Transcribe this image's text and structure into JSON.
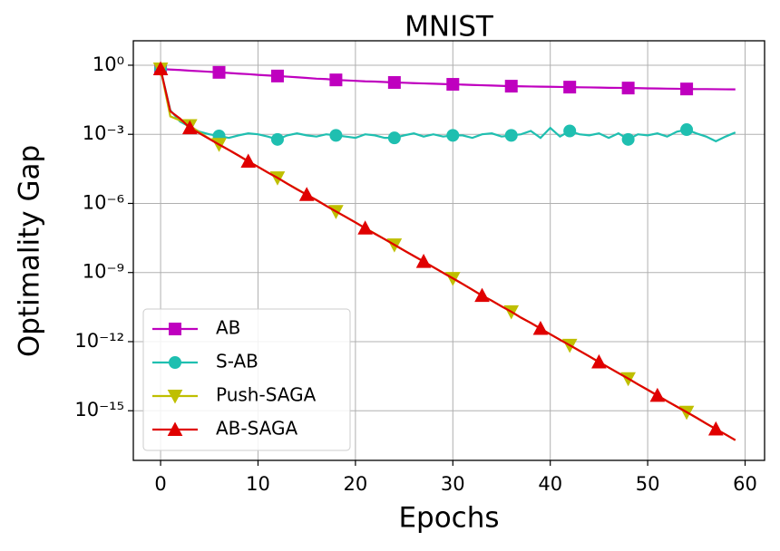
{
  "chart_data": {
    "type": "line",
    "title": "MNIST",
    "xlabel": "Epochs",
    "ylabel": "Optimality Gap",
    "yscale": "log",
    "grid": true,
    "legend": "lower left",
    "xlim": [
      -2.8,
      62
    ],
    "ylim": [
      7e-18,
      11.5
    ],
    "xticks": [
      0,
      10,
      20,
      30,
      40,
      50,
      60
    ],
    "yticks": [
      {
        "value": 1,
        "label": "10⁰"
      },
      {
        "value": 0.001,
        "label": "10⁻³"
      },
      {
        "value": 1e-06,
        "label": "10⁻⁶"
      },
      {
        "value": 1e-09,
        "label": "10⁻⁹"
      },
      {
        "value": 1e-12,
        "label": "10⁻¹²"
      },
      {
        "value": 1e-15,
        "label": "10⁻¹⁵"
      }
    ],
    "x": [
      0,
      1,
      2,
      3,
      4,
      5,
      6,
      7,
      8,
      9,
      10,
      11,
      12,
      13,
      14,
      15,
      16,
      17,
      18,
      19,
      20,
      21,
      22,
      23,
      24,
      25,
      26,
      27,
      28,
      29,
      30,
      31,
      32,
      33,
      34,
      35,
      36,
      37,
      38,
      39,
      40,
      41,
      42,
      43,
      44,
      45,
      46,
      47,
      48,
      49,
      50,
      51,
      52,
      53,
      54,
      55,
      56,
      57,
      58,
      59
    ],
    "series": [
      {
        "name": "AB",
        "color": "#bf00bf",
        "marker": "square",
        "values": [
          0.69,
          0.65,
          0.62,
          0.58,
          0.55,
          0.52,
          0.49,
          0.46,
          0.43,
          0.41,
          0.38,
          0.36,
          0.34,
          0.32,
          0.3,
          0.28,
          0.26,
          0.25,
          0.23,
          0.22,
          0.21,
          0.2,
          0.195,
          0.186,
          0.178,
          0.173,
          0.167,
          0.162,
          0.157,
          0.152,
          0.148,
          0.144,
          0.139,
          0.135,
          0.131,
          0.127,
          0.123,
          0.121,
          0.119,
          0.117,
          0.116,
          0.114,
          0.112,
          0.11,
          0.109,
          0.107,
          0.105,
          0.104,
          0.102,
          0.101,
          0.099,
          0.098,
          0.096,
          0.095,
          0.093,
          0.092,
          0.092,
          0.091,
          0.09,
          0.089
        ]
      },
      {
        "name": "S-AB",
        "color": "#1fbfb0",
        "marker": "circle",
        "values": [
          0.69,
          0.011,
          0.0036,
          0.0021,
          0.0013,
          0.001,
          0.00085,
          0.0007,
          0.0009,
          0.0011,
          0.001,
          0.0008,
          0.0006,
          0.0009,
          0.0011,
          0.0009,
          0.0008,
          0.001,
          0.0009,
          0.0008,
          0.0007,
          0.001,
          0.0009,
          0.0007,
          0.0007,
          0.0009,
          0.0011,
          0.0008,
          0.001,
          0.0008,
          0.0009,
          0.0009,
          0.0007,
          0.001,
          0.0011,
          0.0008,
          0.0009,
          0.001,
          0.0014,
          0.0007,
          0.0019,
          0.0008,
          0.0014,
          0.001,
          0.0009,
          0.0011,
          0.0007,
          0.0011,
          0.0006,
          0.001,
          0.0009,
          0.0011,
          0.0008,
          0.0013,
          0.0016,
          0.0011,
          0.0008,
          0.0005,
          0.0008,
          0.0012
        ]
      },
      {
        "name": "Push-SAGA",
        "color": "#bfbf00",
        "marker": "triangle-down",
        "values": [
          0.69,
          0.006,
          0.004,
          0.0024,
          0.0012,
          0.00065,
          0.00037,
          0.00021,
          0.00012,
          6.8e-05,
          3.9e-05,
          2.2e-05,
          1.3e-05,
          7.3e-06,
          4.2e-06,
          2.4e-06,
          1.4e-06,
          7.9e-07,
          4.5e-07,
          2.6e-07,
          1.5e-07,
          8.5e-08,
          4.9e-08,
          2.8e-08,
          1.6e-08,
          9.1e-09,
          5.2e-09,
          3e-09,
          1.7e-09,
          9.8e-10,
          5.6e-10,
          3.2e-10,
          1.8e-10,
          1e-10,
          6e-11,
          3.4e-11,
          2e-11,
          1.1e-11,
          6.5e-12,
          3.7e-12,
          2.1e-12,
          1.2e-12,
          7e-13,
          4e-13,
          2.3e-13,
          1.3e-13,
          7.5e-14,
          4.3e-14,
          2.5e-14,
          1.4e-14,
          8.1e-15,
          4.6e-15,
          2.6e-15,
          1.5e-15,
          8.7e-16,
          5e-16,
          2.8e-16,
          1.6e-16,
          9.3e-17,
          5.3e-17
        ]
      },
      {
        "name": "AB-SAGA",
        "color": "#e00000",
        "marker": "triangle-up",
        "values": [
          0.69,
          0.01,
          0.0048,
          0.0019,
          0.0011,
          0.00063,
          0.00036,
          0.00021,
          0.00012,
          6.7e-05,
          3.9e-05,
          2.2e-05,
          1.3e-05,
          7.2e-06,
          4.1e-06,
          2.4e-06,
          1.4e-06,
          7.8e-07,
          4.5e-07,
          2.6e-07,
          1.5e-07,
          8.4e-08,
          4.8e-08,
          2.8e-08,
          1.6e-08,
          9e-09,
          5.2e-09,
          3e-09,
          1.7e-09,
          9.7e-10,
          5.6e-10,
          3.2e-10,
          1.8e-10,
          1e-10,
          6e-11,
          3.4e-11,
          2e-11,
          1.1e-11,
          6.5e-12,
          3.7e-12,
          2.1e-12,
          1.2e-12,
          7e-13,
          4e-13,
          2.3e-13,
          1.3e-13,
          7.5e-14,
          4.3e-14,
          2.5e-14,
          1.4e-14,
          8.1e-15,
          4.6e-15,
          2.6e-15,
          1.5e-15,
          8.7e-16,
          5e-16,
          2.8e-16,
          1.6e-16,
          9.3e-17,
          5.3e-17
        ]
      }
    ]
  }
}
